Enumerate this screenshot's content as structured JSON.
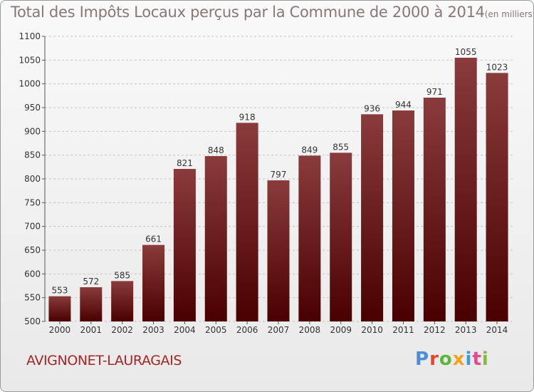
{
  "header": {
    "title": "Total des Impôts Locaux perçus par la Commune de 2000 à 2014",
    "subtitle": "(en milliers d'€)"
  },
  "footer": {
    "commune": "AVIGNONET-LAURAGAIS",
    "brand": "Proxiti",
    "brand_colors": [
      "#4b8ddb",
      "#e8462c",
      "#5cb63a",
      "#f4a21c",
      "#3a9bd6",
      "#e04a8a",
      "#7bbf3a"
    ]
  },
  "colors": {
    "bar_top": "#8a3b3c",
    "bar_bottom": "#4a0000",
    "grid": "#c4c4c4",
    "axis_text": "#333333",
    "title_text": "#8a7676",
    "footer_text": "#a52525"
  },
  "chart_data": {
    "type": "bar",
    "title": "Total des Impôts Locaux perçus par la Commune de 2000 à 2014",
    "xlabel": "",
    "ylabel": "en milliers d'€",
    "categories": [
      "2000",
      "2001",
      "2002",
      "2003",
      "2004",
      "2005",
      "2006",
      "2007",
      "2008",
      "2009",
      "2010",
      "2011",
      "2012",
      "2013",
      "2014"
    ],
    "values": [
      553,
      572,
      585,
      661,
      821,
      848,
      918,
      797,
      849,
      855,
      936,
      944,
      971,
      1055,
      1023
    ],
    "ylim": [
      500,
      1100
    ],
    "yticks": [
      500,
      550,
      600,
      650,
      700,
      750,
      800,
      850,
      900,
      950,
      1000,
      1050,
      1100
    ],
    "grid": true,
    "data_labels": true
  }
}
